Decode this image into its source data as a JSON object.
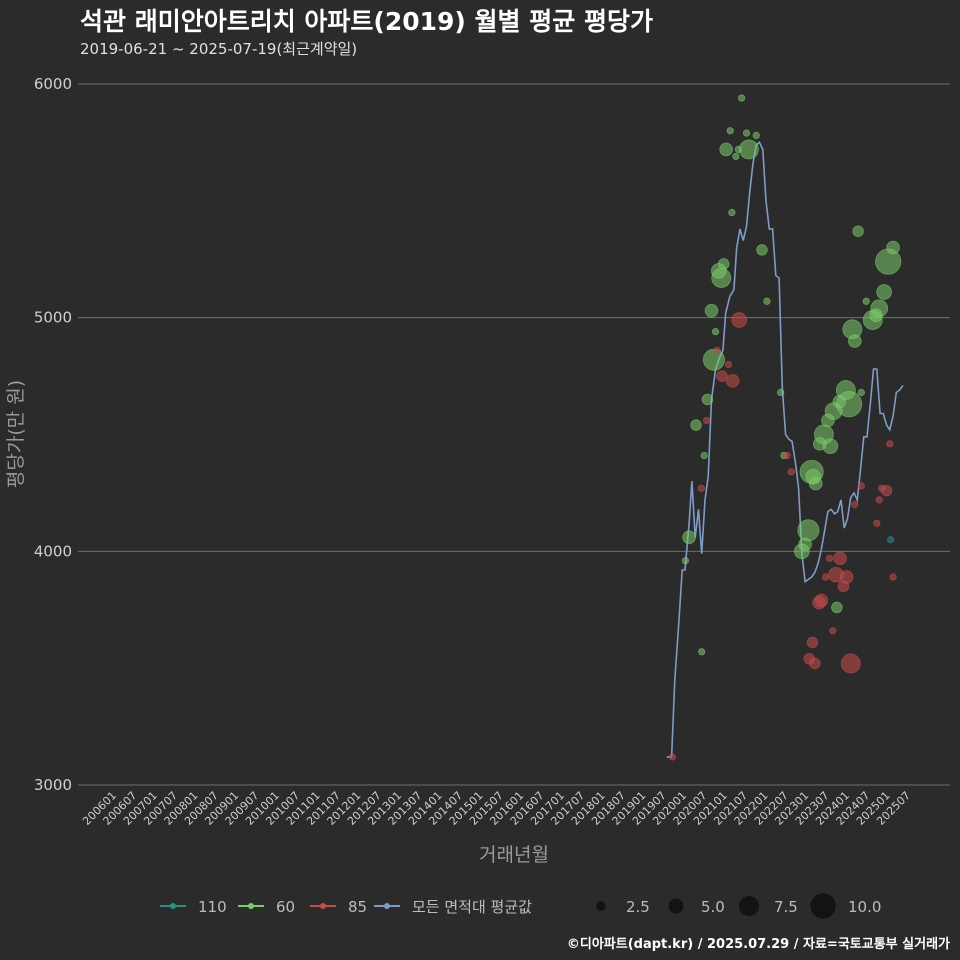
{
  "chart_data": {
    "type": "scatter",
    "title": "석관 래미안아트리치 아파트(2019) 월별 평균 평당가",
    "subtitle": "2019-06-21 ~ 2025-07-19(최근계약일)",
    "xlabel": "거래년월",
    "ylabel": "평당가(만 원)",
    "ylim": [
      3000,
      6000
    ],
    "yticks": [
      3000,
      4000,
      5000,
      6000
    ],
    "grid": true,
    "x_tick_labels": [
      "200601",
      "200607",
      "200701",
      "200707",
      "200801",
      "200807",
      "200901",
      "200907",
      "201001",
      "201007",
      "201101",
      "201107",
      "201201",
      "201207",
      "201301",
      "201307",
      "201401",
      "201407",
      "201501",
      "201507",
      "201601",
      "201607",
      "201701",
      "201707",
      "201801",
      "201807",
      "201901",
      "201907",
      "202001",
      "202007",
      "202101",
      "202107",
      "202201",
      "202207",
      "202301",
      "202307",
      "202401",
      "202407",
      "202501",
      "202507"
    ],
    "legend": {
      "position": "bottom",
      "series_items": [
        {
          "label": "110",
          "color": "#2a8f8a"
        },
        {
          "label": "60",
          "color": "#7ccb6a"
        },
        {
          "label": "85",
          "color": "#c84b4b"
        },
        {
          "label": "모든 면적대 평균값",
          "color": "#7f9cc8"
        }
      ],
      "size_items": [
        {
          "label": "2.5",
          "size": 2.5
        },
        {
          "label": "5.0",
          "size": 5.0
        },
        {
          "label": "7.5",
          "size": 7.5
        },
        {
          "label": "10.0",
          "size": 10.0
        }
      ]
    },
    "average_line": {
      "name": "모든 면적대 평균값",
      "color": "#7f9cc8",
      "points": [
        [
          2019.5,
          3120
        ],
        [
          2019.62,
          3120
        ],
        [
          2019.7,
          3450
        ],
        [
          2019.8,
          3700
        ],
        [
          2019.88,
          3920
        ],
        [
          2019.95,
          3920
        ],
        [
          2020.05,
          4120
        ],
        [
          2020.12,
          4300
        ],
        [
          2020.2,
          4060
        ],
        [
          2020.28,
          4180
        ],
        [
          2020.36,
          3990
        ],
        [
          2020.44,
          4220
        ],
        [
          2020.52,
          4320
        ],
        [
          2020.6,
          4650
        ],
        [
          2020.7,
          4780
        ],
        [
          2020.8,
          4830
        ],
        [
          2020.88,
          4860
        ],
        [
          2020.95,
          5020
        ],
        [
          2021.05,
          5090
        ],
        [
          2021.15,
          5120
        ],
        [
          2021.22,
          5300
        ],
        [
          2021.3,
          5380
        ],
        [
          2021.38,
          5330
        ],
        [
          2021.46,
          5390
        ],
        [
          2021.54,
          5540
        ],
        [
          2021.62,
          5660
        ],
        [
          2021.7,
          5740
        ],
        [
          2021.78,
          5750
        ],
        [
          2021.86,
          5720
        ],
        [
          2021.94,
          5500
        ],
        [
          2022.02,
          5380
        ],
        [
          2022.1,
          5380
        ],
        [
          2022.18,
          5180
        ],
        [
          2022.26,
          5170
        ],
        [
          2022.34,
          4700
        ],
        [
          2022.42,
          4500
        ],
        [
          2022.5,
          4480
        ],
        [
          2022.58,
          4470
        ],
        [
          2022.66,
          4380
        ],
        [
          2022.74,
          4270
        ],
        [
          2022.82,
          3990
        ],
        [
          2022.9,
          3870
        ],
        [
          2022.98,
          3880
        ],
        [
          2023.06,
          3890
        ],
        [
          2023.14,
          3910
        ],
        [
          2023.22,
          3950
        ],
        [
          2023.3,
          4010
        ],
        [
          2023.38,
          4090
        ],
        [
          2023.46,
          4170
        ],
        [
          2023.54,
          4180
        ],
        [
          2023.62,
          4160
        ],
        [
          2023.7,
          4170
        ],
        [
          2023.78,
          4220
        ],
        [
          2023.86,
          4100
        ],
        [
          2023.94,
          4140
        ],
        [
          2024.02,
          4230
        ],
        [
          2024.1,
          4250
        ],
        [
          2024.18,
          4220
        ],
        [
          2024.26,
          4350
        ],
        [
          2024.34,
          4490
        ],
        [
          2024.42,
          4490
        ],
        [
          2024.5,
          4630
        ],
        [
          2024.58,
          4780
        ],
        [
          2024.66,
          4780
        ],
        [
          2024.74,
          4590
        ],
        [
          2024.82,
          4590
        ],
        [
          2024.9,
          4540
        ],
        [
          2024.98,
          4520
        ],
        [
          2025.06,
          4580
        ],
        [
          2025.14,
          4680
        ],
        [
          2025.22,
          4690
        ],
        [
          2025.3,
          4710
        ]
      ]
    },
    "series": [
      {
        "name": "110",
        "color": "#2a8f8a",
        "points": [
          [
            2025.0,
            4050,
            1
          ]
        ]
      },
      {
        "name": "60",
        "color": "#7ccb6a",
        "points": [
          [
            2019.96,
            3960,
            1
          ],
          [
            2020.05,
            4060,
            4
          ],
          [
            2020.22,
            4540,
            3
          ],
          [
            2020.36,
            3570,
            1
          ],
          [
            2020.42,
            4410,
            1
          ],
          [
            2020.5,
            4650,
            3
          ],
          [
            2020.6,
            5030,
            4
          ],
          [
            2020.66,
            4820,
            8
          ],
          [
            2020.7,
            4940,
            1
          ],
          [
            2020.78,
            5200,
            5
          ],
          [
            2020.84,
            5170,
            7
          ],
          [
            2020.9,
            5230,
            3
          ],
          [
            2020.96,
            5720,
            4
          ],
          [
            2021.06,
            5800,
            1
          ],
          [
            2021.1,
            5450,
            1
          ],
          [
            2021.2,
            5690,
            1
          ],
          [
            2021.26,
            5720,
            1
          ],
          [
            2021.34,
            5940,
            1
          ],
          [
            2021.46,
            5790,
            1
          ],
          [
            2021.52,
            5720,
            7
          ],
          [
            2021.7,
            5780,
            1
          ],
          [
            2021.84,
            5290,
            3
          ],
          [
            2021.96,
            5070,
            1
          ],
          [
            2022.3,
            4680,
            1
          ],
          [
            2022.38,
            4410,
            1
          ],
          [
            2022.82,
            4000,
            5
          ],
          [
            2022.9,
            4030,
            4
          ],
          [
            2022.98,
            4090,
            8
          ],
          [
            2023.06,
            4340,
            9
          ],
          [
            2023.1,
            4320,
            5
          ],
          [
            2023.16,
            4290,
            4
          ],
          [
            2023.26,
            4460,
            4
          ],
          [
            2023.36,
            4500,
            7
          ],
          [
            2023.46,
            4560,
            4
          ],
          [
            2023.52,
            4450,
            5
          ],
          [
            2023.6,
            4600,
            6
          ],
          [
            2023.68,
            3760,
            3
          ],
          [
            2023.74,
            4640,
            4
          ],
          [
            2023.9,
            4690,
            7
          ],
          [
            2023.98,
            4630,
            10
          ],
          [
            2024.06,
            4950,
            7
          ],
          [
            2024.12,
            4900,
            4
          ],
          [
            2024.2,
            5370,
            3
          ],
          [
            2024.28,
            4680,
            1
          ],
          [
            2024.4,
            5070,
            1
          ],
          [
            2024.56,
            4990,
            7
          ],
          [
            2024.64,
            5010,
            4
          ],
          [
            2024.72,
            5040,
            6
          ],
          [
            2024.84,
            5110,
            5
          ],
          [
            2024.94,
            5240,
            10
          ],
          [
            2025.06,
            5300,
            4
          ]
        ]
      },
      {
        "name": "85",
        "color": "#c84b4b",
        "points": [
          [
            2019.64,
            3120,
            1
          ],
          [
            2020.35,
            4270,
            1
          ],
          [
            2020.48,
            4560,
            1
          ],
          [
            2020.74,
            4860,
            1
          ],
          [
            2020.86,
            4750,
            3
          ],
          [
            2021.02,
            4800,
            1
          ],
          [
            2021.12,
            4730,
            4
          ],
          [
            2021.28,
            4990,
            5
          ],
          [
            2022.46,
            4410,
            1
          ],
          [
            2022.56,
            4340,
            1
          ],
          [
            2023.0,
            3540,
            3
          ],
          [
            2023.08,
            3610,
            3
          ],
          [
            2023.14,
            3520,
            3
          ],
          [
            2023.24,
            3780,
            4
          ],
          [
            2023.3,
            3790,
            4
          ],
          [
            2023.4,
            3890,
            1
          ],
          [
            2023.5,
            3970,
            1
          ],
          [
            2023.58,
            3660,
            1
          ],
          [
            2023.66,
            3900,
            5
          ],
          [
            2023.76,
            3970,
            4
          ],
          [
            2023.84,
            3850,
            3
          ],
          [
            2023.92,
            3890,
            4
          ],
          [
            2024.02,
            3520,
            7
          ],
          [
            2024.12,
            4200,
            1
          ],
          [
            2024.28,
            4280,
            1
          ],
          [
            2024.66,
            4120,
            1
          ],
          [
            2024.72,
            4220,
            1
          ],
          [
            2024.78,
            4270,
            1
          ],
          [
            2024.9,
            4260,
            3
          ],
          [
            2024.98,
            4460,
            1
          ],
          [
            2025.06,
            3890,
            1
          ]
        ]
      }
    ]
  },
  "caption": "©디아파트(dapt.kr) / 2025.07.29 / 자료=국토교통부 실거래가"
}
